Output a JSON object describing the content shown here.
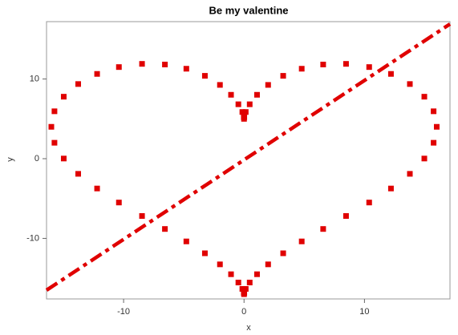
{
  "chart_data": {
    "type": "scatter",
    "title": "Be my valentine",
    "x_label": "x",
    "y_label": "y",
    "xlim": [
      -16.4,
      17.1
    ],
    "ylim": [
      -17.6,
      17.2
    ],
    "xticks": [
      -10,
      0,
      10
    ],
    "yticks": [
      -10,
      0,
      10
    ],
    "series": [
      {
        "type": "scatter",
        "color": "#e00000",
        "x": [
          0,
          0.02,
          0.14,
          0.47,
          1.08,
          2,
          3.25,
          4.79,
          6.57,
          8.47,
          10.39,
          12.2,
          13.77,
          14.97,
          15.74,
          16,
          15.74,
          14.97,
          13.77,
          12.2,
          10.39,
          8.47,
          6.57,
          4.79,
          3.25,
          2,
          1.08,
          0.47,
          0.14,
          0.02,
          0,
          -0.02,
          -0.14,
          -0.47,
          -1.08,
          -2,
          -3.25,
          -4.79,
          -6.57,
          -8.47,
          -10.39,
          -12.2,
          -13.77,
          -14.97,
          -15.74,
          -16,
          -15.74,
          -14.97,
          -13.77,
          -12.2,
          -10.39,
          -8.47,
          -6.57,
          -4.79,
          -3.25,
          -2,
          -1.08,
          -0.47,
          -0.14,
          -0.02
        ],
        "y": [
          5,
          5.22,
          5.86,
          6.83,
          8.02,
          9.26,
          10.4,
          11.29,
          11.82,
          11.9,
          11.5,
          10.64,
          9.37,
          7.78,
          5.95,
          4,
          2,
          0.02,
          -1.9,
          -3.74,
          -5.5,
          -7.19,
          -8.82,
          -10.38,
          -11.87,
          -13.26,
          -14.5,
          -15.54,
          -16.34,
          -16.83,
          -17,
          -16.83,
          -16.34,
          -15.54,
          -14.5,
          -13.26,
          -11.87,
          -10.38,
          -8.82,
          -7.19,
          -5.5,
          -3.74,
          -1.9,
          0.02,
          2,
          4,
          5.95,
          7.78,
          9.37,
          10.64,
          11.5,
          11.9,
          11.82,
          11.29,
          10.4,
          9.26,
          8.02,
          6.83,
          5.86,
          5.22
        ]
      },
      {
        "type": "line",
        "color": "#e00000",
        "x": [
          -16.4,
          17.1
        ],
        "y": [
          -16.5,
          16.9
        ]
      }
    ]
  }
}
